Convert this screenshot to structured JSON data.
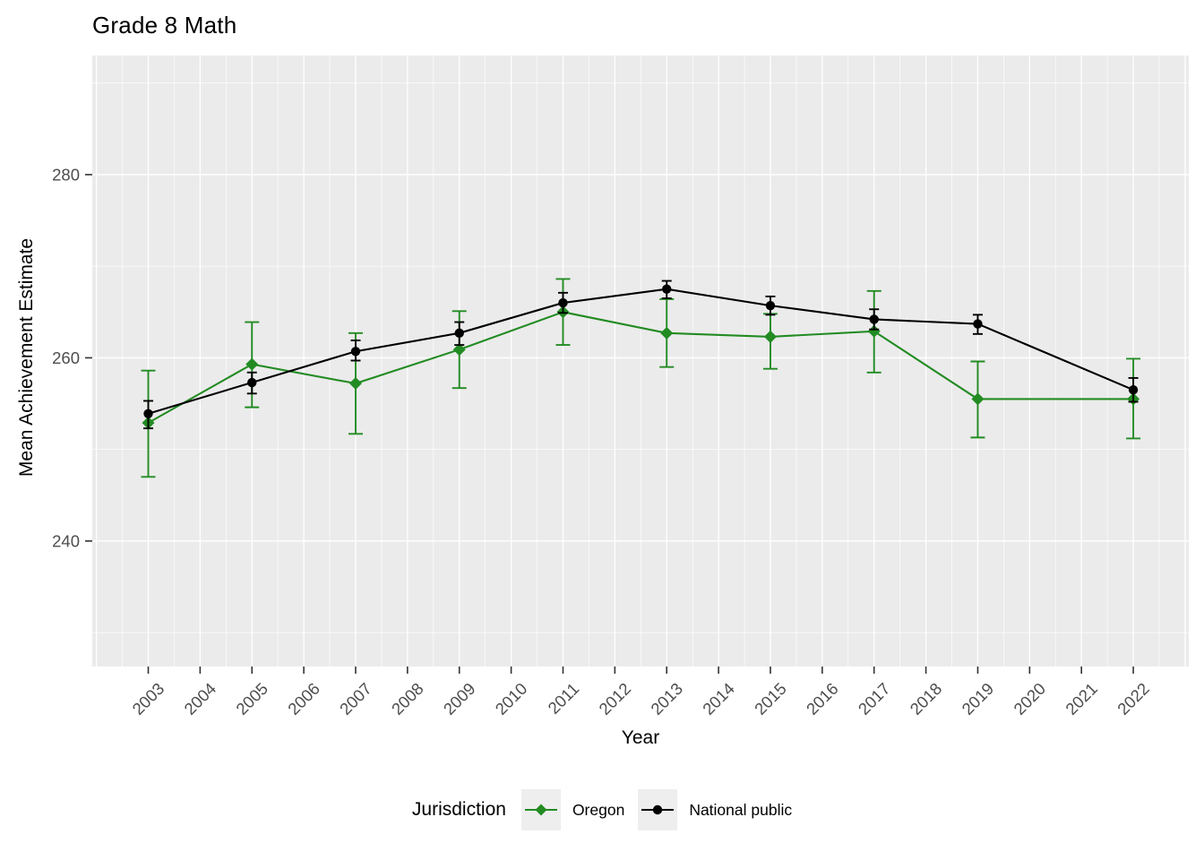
{
  "title": "Grade 8 Math",
  "chart_data": {
    "type": "line",
    "title": "Grade 8 Math",
    "xlabel": "Year",
    "ylabel": "Mean Achievement Estimate",
    "xlim": [
      2001.92,
      2023.07
    ],
    "ylim": [
      226.3,
      293.0
    ],
    "x_ticks": [
      2003,
      2004,
      2005,
      2006,
      2007,
      2008,
      2009,
      2010,
      2011,
      2012,
      2013,
      2014,
      2015,
      2016,
      2017,
      2018,
      2019,
      2020,
      2021,
      2022
    ],
    "y_ticks": [
      240,
      260,
      280
    ],
    "grid": {
      "major": true,
      "minor": true
    },
    "legend": {
      "title": "Jurisdiction",
      "position": "bottom"
    },
    "series": [
      {
        "name": "Oregon",
        "color": "#228B22",
        "marker": "diamond",
        "x": [
          2003,
          2005,
          2007,
          2009,
          2011,
          2013,
          2015,
          2017,
          2019,
          2022
        ],
        "y": [
          252.9,
          259.3,
          257.2,
          260.9,
          265.0,
          262.7,
          262.3,
          262.9,
          255.5,
          255.5
        ],
        "ymin": [
          247.0,
          254.6,
          251.7,
          256.7,
          261.4,
          259.0,
          258.8,
          258.4,
          251.3,
          251.2
        ],
        "ymax": [
          258.6,
          263.9,
          262.7,
          265.1,
          268.6,
          266.4,
          264.8,
          267.3,
          259.6,
          259.9
        ]
      },
      {
        "name": "National public",
        "color": "#000000",
        "marker": "circle",
        "x": [
          2003,
          2005,
          2007,
          2009,
          2011,
          2013,
          2015,
          2017,
          2019,
          2022
        ],
        "y": [
          253.9,
          257.3,
          260.7,
          262.7,
          266.0,
          267.5,
          265.7,
          264.2,
          263.7,
          256.5
        ],
        "ymin": [
          252.3,
          256.1,
          259.7,
          261.4,
          264.9,
          266.5,
          264.7,
          263.1,
          262.6,
          255.2
        ],
        "ymax": [
          255.3,
          258.4,
          261.9,
          263.9,
          267.1,
          268.4,
          266.7,
          265.3,
          264.7,
          257.8
        ]
      }
    ]
  },
  "colors": {
    "panel_background": "#EBEBEB",
    "gridline": "#FFFFFF",
    "tick_mark": "#333333",
    "tick_label": "#4D4D4D",
    "legend_key_background": "#EEEEEE"
  }
}
